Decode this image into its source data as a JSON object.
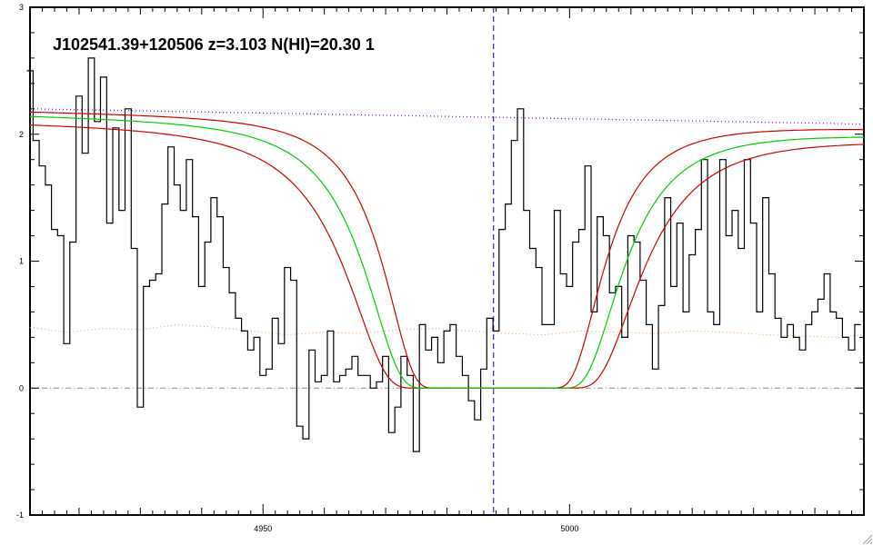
{
  "chart_data": {
    "type": "line",
    "title": "J102541.39+120506 z=3.103 N(HI)=20.30 1",
    "xlabel": "",
    "ylabel": "",
    "xlim": [
      4912,
      5048
    ],
    "ylim": [
      -1,
      3
    ],
    "x_ticks": [
      {
        "value": 4950,
        "label": "4950"
      },
      {
        "value": 5000,
        "label": "5000"
      }
    ],
    "y_ticks": [
      {
        "value": -1,
        "label": "-1"
      },
      {
        "value": 0,
        "label": "0"
      },
      {
        "value": 1,
        "label": "1"
      },
      {
        "value": 2,
        "label": "2"
      },
      {
        "value": 3,
        "label": "3"
      }
    ],
    "center_wavelength": 4987.6,
    "zero_level": 0,
    "grid": false,
    "colors": {
      "flux": "#000000",
      "model": "#00cc00",
      "model_bounds": "#cc0000",
      "continuum": "#8800cc",
      "error": "#ff9933",
      "zero": "#888888",
      "center": "#000080"
    },
    "model": {
      "center": 4987.6,
      "half_width": 20.5,
      "continuum": [
        2.15,
        2.0
      ],
      "upper_half_width": 17.5,
      "lower_half_width": 23.5,
      "upper_continuum": [
        2.18,
        2.05
      ],
      "lower_continuum": [
        2.09,
        1.96
      ]
    },
    "continuum_line": {
      "x": [
        4912,
        5048
      ],
      "y": [
        2.2,
        2.08
      ]
    },
    "flux": {
      "x": [
        4912,
        4913,
        4914,
        4915,
        4916,
        4917,
        4918,
        4919,
        4920,
        4921,
        4922,
        4923,
        4924,
        4925,
        4926,
        4927,
        4928,
        4929,
        4930,
        4931,
        4932,
        4933,
        4934,
        4935,
        4936,
        4937,
        4938,
        4939,
        4940,
        4941,
        4942,
        4943,
        4944,
        4945,
        4946,
        4947,
        4948,
        4949,
        4950,
        4951,
        4952,
        4953,
        4954,
        4955,
        4956,
        4957,
        4958,
        4959,
        4960,
        4961,
        4962,
        4963,
        4964,
        4965,
        4966,
        4967,
        4968,
        4969,
        4970,
        4971,
        4972,
        4973,
        4974,
        4975,
        4976,
        4977,
        4978,
        4979,
        4980,
        4981,
        4982,
        4983,
        4984,
        4985,
        4986,
        4987,
        4988,
        4989,
        4990,
        4991,
        4992,
        4993,
        4994,
        4995,
        4996,
        4997,
        4998,
        4999,
        5000,
        5001,
        5002,
        5003,
        5004,
        5005,
        5006,
        5007,
        5008,
        5009,
        5010,
        5011,
        5012,
        5013,
        5014,
        5015,
        5016,
        5017,
        5018,
        5019,
        5020,
        5021,
        5022,
        5023,
        5024,
        5025,
        5026,
        5027,
        5028,
        5029,
        5030,
        5031,
        5032,
        5033,
        5034,
        5035,
        5036,
        5037,
        5038,
        5039,
        5040,
        5041,
        5042,
        5043,
        5044,
        5045,
        5046,
        5047
      ],
      "y": [
        2.5,
        1.95,
        1.75,
        1.6,
        1.25,
        1.2,
        0.35,
        1.15,
        2.3,
        1.85,
        2.6,
        2.1,
        2.45,
        1.3,
        2.05,
        1.4,
        2.2,
        1.1,
        -0.15,
        0.8,
        0.85,
        0.9,
        1.45,
        1.9,
        1.6,
        1.4,
        1.8,
        1.35,
        0.8,
        1.15,
        1.5,
        1.35,
        0.95,
        0.75,
        0.55,
        0.45,
        0.3,
        0.4,
        0.1,
        0.15,
        0.55,
        0.35,
        0.95,
        0.85,
        -0.3,
        -0.4,
        0.3,
        0.05,
        0.1,
        0.45,
        0.05,
        0.1,
        0.15,
        0.25,
        0.1,
        0.1,
        0.0,
        0.05,
        0.25,
        -0.35,
        -0.15,
        0.25,
        0.1,
        -0.5,
        0.5,
        0.3,
        0.4,
        0.2,
        0.45,
        0.5,
        0.25,
        0.1,
        -0.1,
        -0.25,
        0.15,
        0.55,
        0.45,
        1.25,
        1.45,
        1.95,
        2.2,
        1.4,
        1.1,
        0.95,
        0.5,
        0.5,
        1.4,
        0.9,
        0.8,
        1.15,
        1.25,
        1.75,
        0.6,
        1.35,
        1.2,
        0.75,
        0.8,
        0.4,
        1.2,
        1.15,
        0.85,
        0.5,
        0.15,
        0.65,
        1.5,
        0.8,
        1.3,
        0.6,
        1.05,
        1.25,
        1.8,
        0.6,
        0.5,
        1.8,
        1.2,
        1.4,
        1.1,
        1.8,
        1.3,
        0.6,
        1.5,
        0.9,
        0.55,
        0.4,
        0.5,
        0.4,
        0.3,
        0.5,
        0.6,
        0.7,
        0.9,
        0.6,
        0.55,
        0.4,
        0.3,
        0.5
      ]
    },
    "error": {
      "x": [
        4912,
        4918,
        4924,
        4930,
        4936,
        4942,
        4948,
        4954,
        4960,
        4966,
        4972,
        4978,
        4984,
        4990,
        4996,
        5002,
        5008,
        5014,
        5020,
        5026,
        5032,
        5038,
        5044,
        5048
      ],
      "y": [
        0.48,
        0.44,
        0.47,
        0.46,
        0.5,
        0.48,
        0.45,
        0.42,
        0.44,
        0.43,
        0.46,
        0.47,
        0.45,
        0.43,
        0.42,
        0.45,
        0.44,
        0.43,
        0.45,
        0.44,
        0.42,
        0.41,
        0.4,
        0.42
      ]
    }
  }
}
